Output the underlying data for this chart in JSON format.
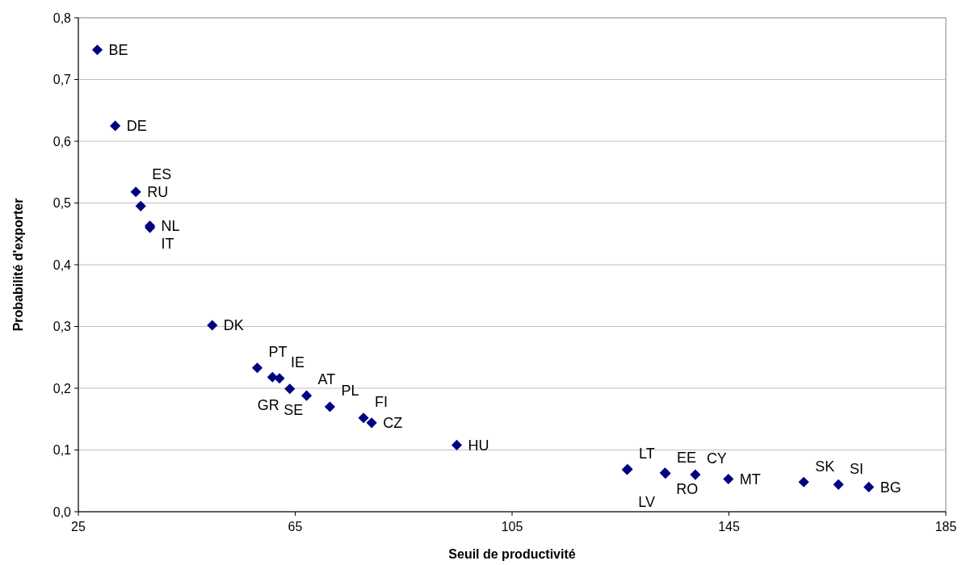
{
  "chart_data": {
    "type": "scatter",
    "xlabel": "Seuil de productivité",
    "ylabel": "Probabilité d'exporter",
    "x": [
      28.5,
      31.8,
      35.6,
      36.5,
      38.2,
      38.2,
      49.7,
      58.0,
      60.8,
      62.1,
      64.0,
      67.1,
      71.4,
      77.6,
      79.1,
      94.8,
      126.3,
      126.2,
      133.2,
      133.3,
      138.8,
      144.9,
      158.8,
      165.2,
      170.8
    ],
    "series": [
      {
        "color": "#000080",
        "values": [
          0.748,
          0.625,
          0.518,
          0.495,
          0.463,
          0.46,
          0.302,
          0.233,
          0.218,
          0.216,
          0.199,
          0.188,
          0.17,
          0.152,
          0.144,
          0.108,
          0.069,
          0.068,
          0.063,
          0.062,
          0.06,
          0.053,
          0.048,
          0.044,
          0.04
        ]
      }
    ],
    "annotations": [
      {
        "text": "BE",
        "x": 28.5,
        "y": 0.748
      },
      {
        "text": "DE",
        "x": 31.8,
        "y": 0.625
      },
      {
        "text": "RU",
        "x": 35.6,
        "y": 0.518
      },
      {
        "text": "ES",
        "x": 36.5,
        "y": 0.495
      },
      {
        "text": "NL",
        "x": 38.2,
        "y": 0.463
      },
      {
        "text": "IT",
        "x": 38.2,
        "y": 0.46
      },
      {
        "text": "DK",
        "x": 49.7,
        "y": 0.302
      },
      {
        "text": "PT",
        "x": 58.0,
        "y": 0.233
      },
      {
        "text": "SE",
        "x": 60.8,
        "y": 0.218
      },
      {
        "text": "IE",
        "x": 62.1,
        "y": 0.216
      },
      {
        "text": "GR",
        "x": 64.0,
        "y": 0.199
      },
      {
        "text": "AT",
        "x": 67.1,
        "y": 0.188
      },
      {
        "text": "PL",
        "x": 71.4,
        "y": 0.17
      },
      {
        "text": "FI",
        "x": 77.6,
        "y": 0.152
      },
      {
        "text": "CZ",
        "x": 79.1,
        "y": 0.144
      },
      {
        "text": "HU",
        "x": 94.8,
        "y": 0.108
      },
      {
        "text": "LT",
        "x": 126.3,
        "y": 0.069
      },
      {
        "text": "LV",
        "x": 126.2,
        "y": 0.068
      },
      {
        "text": "RO",
        "x": 133.2,
        "y": 0.063
      },
      {
        "text": "EE",
        "x": 133.3,
        "y": 0.062
      },
      {
        "text": "CY",
        "x": 138.8,
        "y": 0.06
      },
      {
        "text": "MT",
        "x": 144.9,
        "y": 0.053
      },
      {
        "text": "SK",
        "x": 158.8,
        "y": 0.048
      },
      {
        "text": "SI",
        "x": 165.2,
        "y": 0.044
      },
      {
        "text": "BG",
        "x": 170.8,
        "y": 0.04
      }
    ],
    "xlim": [
      25,
      185
    ],
    "xticks": [
      25,
      65,
      105,
      145,
      185
    ],
    "ylim": [
      0,
      0.8
    ],
    "yticks": [
      {
        "value": 0,
        "label": "0,0"
      },
      {
        "value": 0.1,
        "label": "0,1"
      },
      {
        "value": 0.2,
        "label": "0,2"
      },
      {
        "value": 0.3,
        "label": "0,3"
      },
      {
        "value": 0.4,
        "label": "0,4"
      },
      {
        "value": 0.5,
        "label": "0,5"
      },
      {
        "value": 0.6,
        "label": "0,6"
      },
      {
        "value": 0.7,
        "label": "0,7"
      },
      {
        "value": 0.8,
        "label": "0,8"
      }
    ],
    "grid": "y",
    "marker": "diamond"
  }
}
